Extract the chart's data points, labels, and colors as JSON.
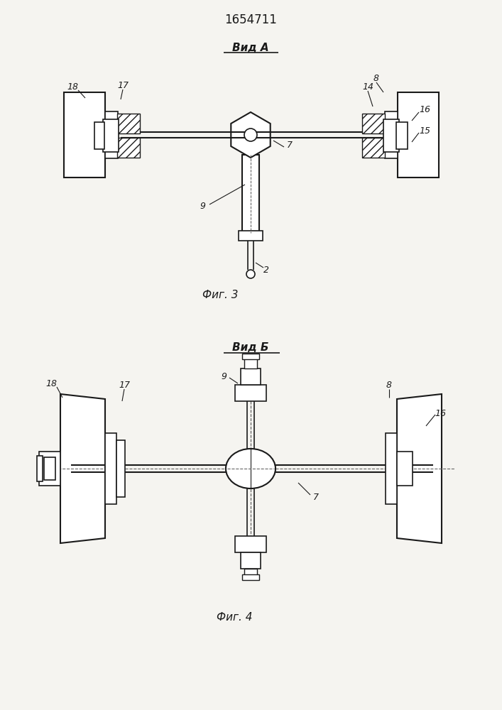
{
  "title": "1654711",
  "title_fontsize": 12,
  "background_color": "#f5f4f0",
  "line_color": "#1a1a1a",
  "fig3_label": "Вид А",
  "fig3_caption": "Фиг. 3",
  "fig4_label": "Вид Б",
  "fig4_caption": "Фиг. 4",
  "label_fontsize": 9,
  "caption_fontsize": 11
}
